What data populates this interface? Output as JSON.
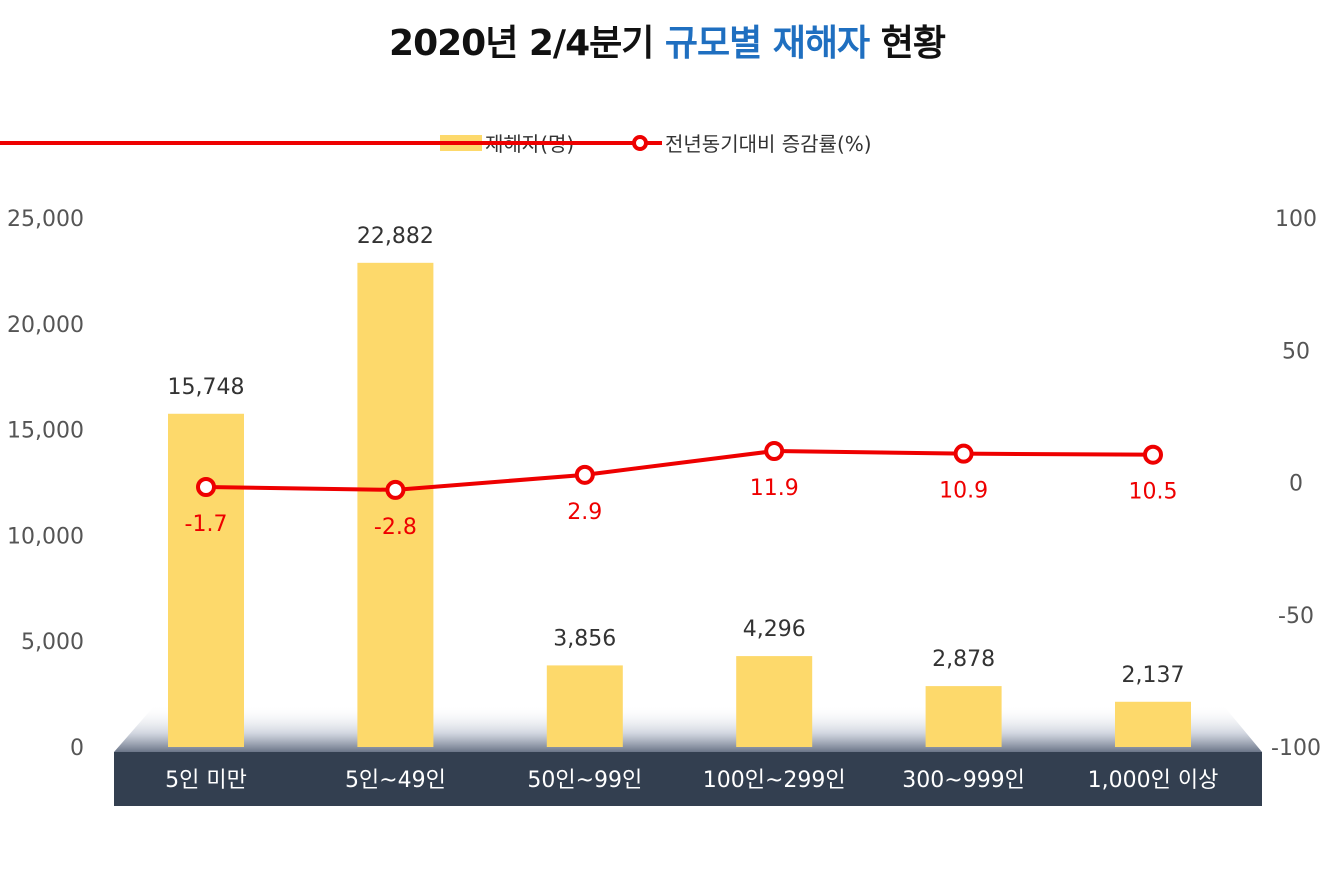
{
  "title": {
    "part1": "2020년 2/4분기 ",
    "highlight": "규모별 재해자",
    "part2": " 현황"
  },
  "colors": {
    "bar": "#fdd96b",
    "line": "#ee0000",
    "axis_band": "#333f50",
    "title_highlight": "#1f6fc0"
  },
  "chart_data": {
    "type": "bar",
    "categories": [
      "5인 미만",
      "5인~49인",
      "50인~99인",
      "100인~299인",
      "300~999인",
      "1,000인 이상"
    ],
    "series": [
      {
        "name": "재해자(명)",
        "type": "bar",
        "axis": "left",
        "values": [
          15748,
          22882,
          3856,
          4296,
          2878,
          2137
        ],
        "labels": [
          "15,748",
          "22,882",
          "3,856",
          "4,296",
          "2,878",
          "2,137"
        ]
      },
      {
        "name": "전년동기대비 증감률(%)",
        "type": "line",
        "axis": "right",
        "values": [
          -1.7,
          -2.8,
          2.9,
          11.9,
          10.9,
          10.5
        ],
        "labels": [
          "-1.7",
          "-2.8",
          "2.9",
          "11.9",
          "10.9",
          "10.5"
        ]
      }
    ],
    "y_left": {
      "ylim": [
        0,
        25000
      ],
      "ticks": [
        0,
        5000,
        10000,
        15000,
        20000,
        25000
      ],
      "tick_labels": [
        "0",
        "5,000",
        "10,000",
        "15,000",
        "20,000",
        "25,000"
      ]
    },
    "y_right": {
      "ylim": [
        -100,
        100
      ],
      "ticks": [
        -100,
        -50,
        0,
        50,
        100
      ],
      "tick_labels": [
        "-100",
        "-50",
        "0",
        "50",
        "100"
      ]
    },
    "legend_position": "top-center",
    "grid": false
  }
}
